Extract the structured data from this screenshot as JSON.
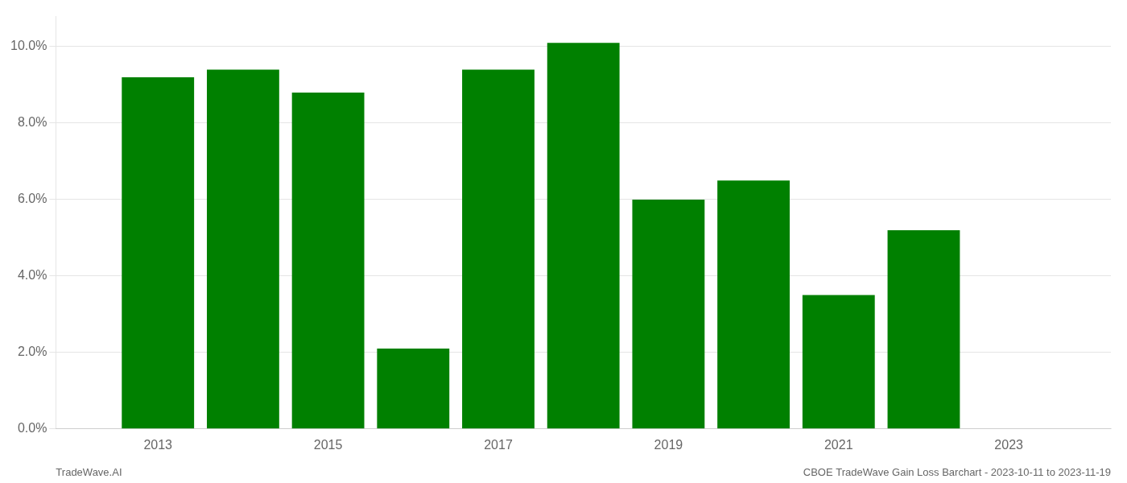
{
  "chart_data": {
    "type": "bar",
    "x": [
      2013,
      2014,
      2015,
      2016,
      2017,
      2018,
      2019,
      2020,
      2021,
      2022
    ],
    "values": [
      0.092,
      0.094,
      0.088,
      0.021,
      0.094,
      0.101,
      0.06,
      0.065,
      0.035,
      0.052
    ],
    "color": "#008000",
    "xlim": [
      2011.8,
      2024.2
    ],
    "xticks": [
      2013,
      2015,
      2017,
      2019,
      2021,
      2023
    ],
    "ylim": [
      0,
      0.108
    ],
    "yticks": [
      {
        "value": 0.0,
        "label": "0.0%"
      },
      {
        "value": 0.02,
        "label": "2.0%"
      },
      {
        "value": 0.04,
        "label": "4.0%"
      },
      {
        "value": 0.06,
        "label": "6.0%"
      },
      {
        "value": 0.08,
        "label": "8.0%"
      },
      {
        "value": 0.1,
        "label": "10.0%"
      }
    ],
    "grid": "y",
    "annotations": [
      "TradeWave.AI",
      "CBOE TradeWave Gain Loss Barchart - 2023-10-11 to 2023-11-19"
    ]
  }
}
